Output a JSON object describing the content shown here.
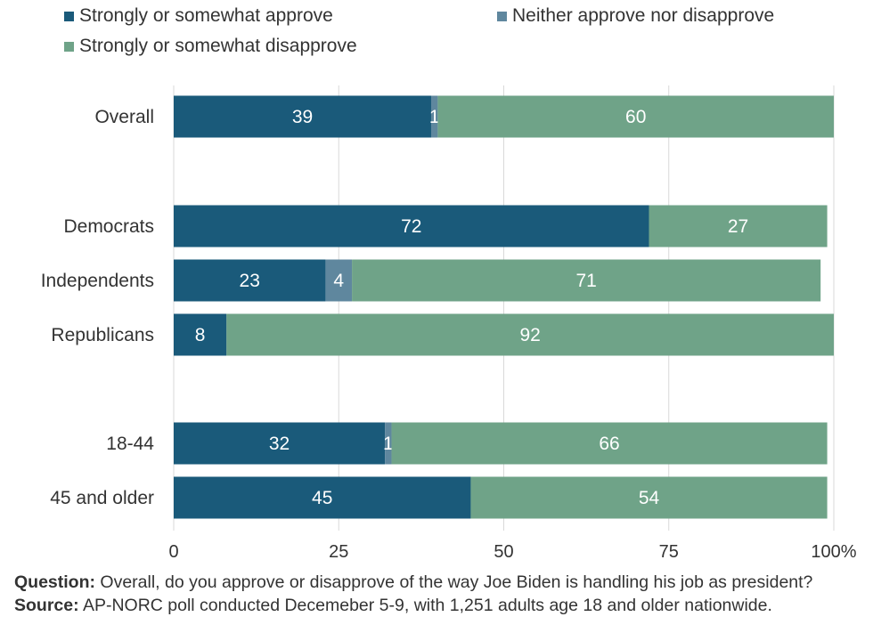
{
  "legend": [
    {
      "label": "Strongly or somewhat approve",
      "color": "#1a5a7a"
    },
    {
      "label": "Neither approve nor disapprove",
      "color": "#5f879e"
    },
    {
      "label": "Strongly or somewhat disapprove",
      "color": "#6fa388"
    }
  ],
  "chart_data": {
    "type": "bar",
    "orientation": "horizontal",
    "stacked": true,
    "categories": [
      "Overall",
      "Democrats",
      "Independents",
      "Republicans",
      "18-44",
      "45 and older"
    ],
    "series": [
      {
        "name": "Strongly or somewhat approve",
        "values": [
          39,
          72,
          23,
          8,
          32,
          45
        ],
        "color": "#1a5a7a"
      },
      {
        "name": "Neither approve nor disapprove",
        "values": [
          1,
          0,
          4,
          0,
          1,
          0
        ],
        "color": "#5f879e"
      },
      {
        "name": "Strongly or somewhat disapprove",
        "values": [
          60,
          27,
          71,
          92,
          66,
          54
        ],
        "color": "#6fa388"
      }
    ],
    "xlim": [
      0,
      100
    ],
    "xticks": [
      "0",
      "25",
      "50",
      "75",
      "100%"
    ],
    "grid": true,
    "legend_position": "top"
  },
  "footer": {
    "question_label": "Question:",
    "question_text": " Overall, do you approve or disapprove of the way Joe Biden is handling his job as president?",
    "source_label": "Source:",
    "source_text": " AP-NORC poll conducted Decemeber 5-9, with 1,251 adults age 18 and older nationwide."
  }
}
